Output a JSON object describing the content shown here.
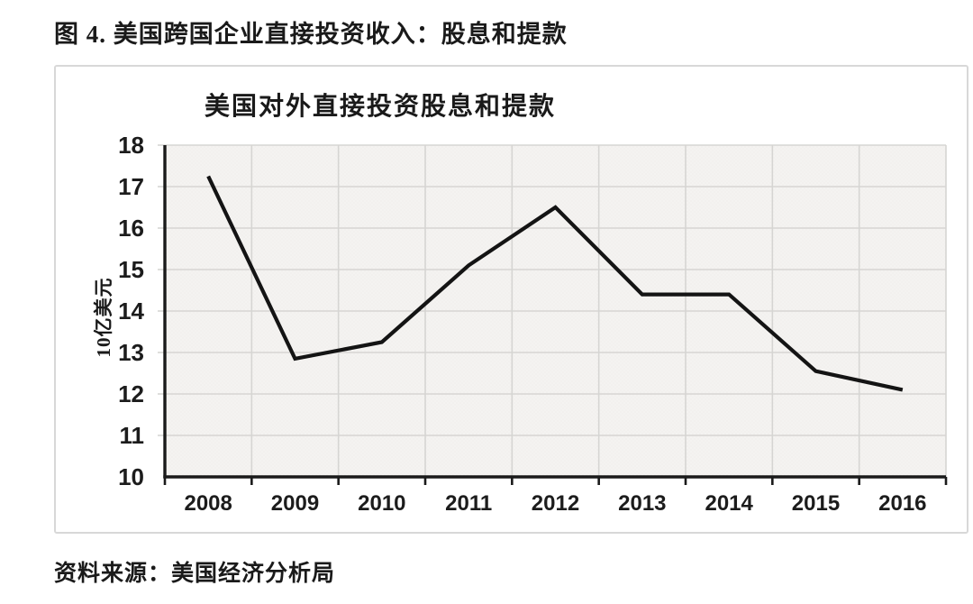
{
  "page": {
    "figure_title": "图 4. 美国跨国企业直接投资收入：股息和提款",
    "source": "资料来源：美国经济分析局"
  },
  "chart_data": {
    "type": "line",
    "title": "美国对外直接投资股息和提款",
    "ylabel": "10亿美元",
    "xlabel": "",
    "categories": [
      "2008",
      "2009",
      "2010",
      "2011",
      "2012",
      "2013",
      "2014",
      "2015",
      "2016"
    ],
    "series": [
      {
        "name": "美国对外直接投资股息和提款",
        "values": [
          17.25,
          12.85,
          13.25,
          15.1,
          16.5,
          14.4,
          14.4,
          12.55,
          12.1
        ]
      }
    ],
    "ylim": [
      10,
      18
    ],
    "ytick_step": 1,
    "grid": true,
    "legend": "none",
    "colors": {
      "line": "#141414",
      "axis": "#1a1a1a",
      "grid": "#d6d5d3",
      "plot_bg": "#f4f3f1",
      "plot_bg_dot": "#e9e7e4",
      "box_border": "#d8d8d8"
    }
  }
}
